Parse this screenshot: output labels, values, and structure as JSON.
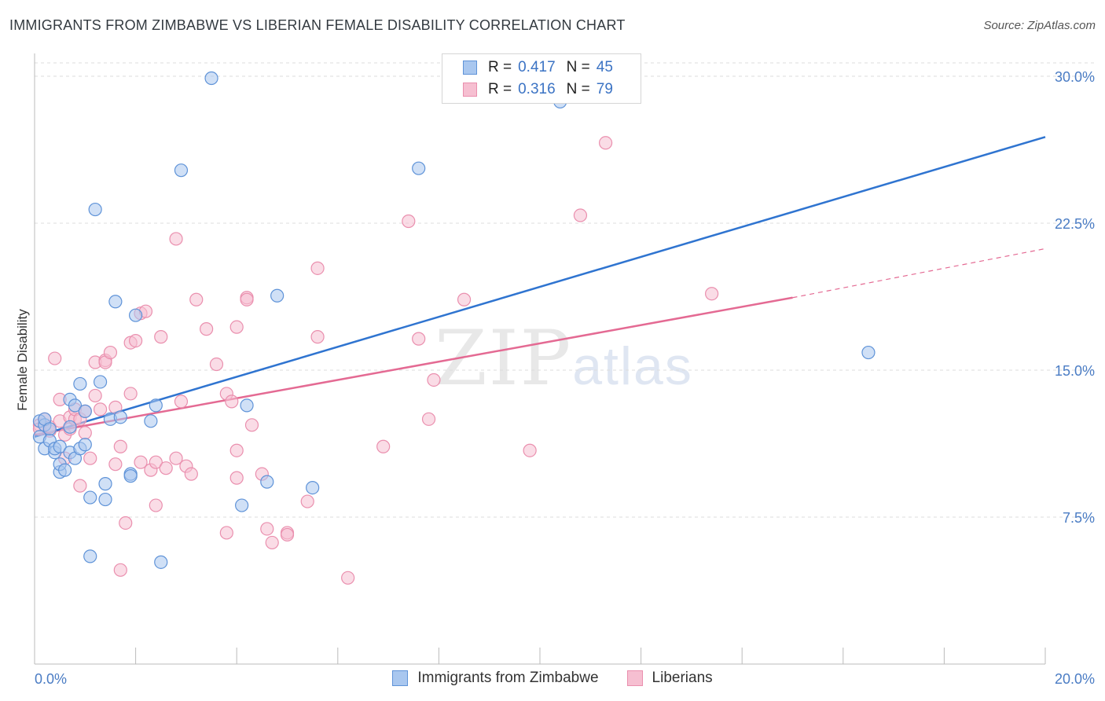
{
  "header": {
    "title": "IMMIGRANTS FROM ZIMBABWE VS LIBERIAN FEMALE DISABILITY CORRELATION CHART",
    "source": "Source: ZipAtlas.com"
  },
  "watermark": {
    "zip": "ZIP",
    "atlas": "atlas"
  },
  "legend_top": [
    {
      "r_label": "R = ",
      "r_value": "0.417",
      "n_label": "N = ",
      "n_value": "45"
    },
    {
      "r_label": "R = ",
      "r_value": "0.316",
      "n_label": "N = ",
      "n_value": "79"
    }
  ],
  "legend_bottom": [
    "Immigrants from Zimbabwe",
    "Liberians"
  ],
  "colors": {
    "blue_fill": "#a9c7ef",
    "blue_stroke": "#5f93d8",
    "blue_line": "#2f74d0",
    "pink_fill": "#f6bfd1",
    "pink_stroke": "#ea8fae",
    "pink_line": "#e46a93",
    "grid": "#dddddd",
    "tick_text": "#4a7cc4"
  },
  "chart_data": {
    "type": "scatter",
    "title": "IMMIGRANTS FROM ZIMBABWE VS LIBERIAN FEMALE DISABILITY CORRELATION CHART",
    "xlabel": "",
    "ylabel": "Female Disability",
    "xlim": [
      0,
      20
    ],
    "ylim": [
      0,
      31
    ],
    "x_tick_labels": [
      "0.0%",
      "20.0%"
    ],
    "y_ticks": [
      7.5,
      15.0,
      22.5,
      30.0
    ],
    "y_tick_labels": [
      "7.5%",
      "15.0%",
      "22.5%",
      "30.0%"
    ],
    "series": [
      {
        "name": "Immigrants from Zimbabwe",
        "R": 0.417,
        "N": 45,
        "trend": {
          "x": [
            0.0,
            20.0
          ],
          "y": [
            11.6,
            26.9
          ]
        },
        "points": [
          [
            0.1,
            12.4
          ],
          [
            0.1,
            11.6
          ],
          [
            0.2,
            12.2
          ],
          [
            0.2,
            11.0
          ],
          [
            0.2,
            12.5
          ],
          [
            0.3,
            12.0
          ],
          [
            0.3,
            11.4
          ],
          [
            0.4,
            10.8
          ],
          [
            0.4,
            11.0
          ],
          [
            0.5,
            9.8
          ],
          [
            0.5,
            10.2
          ],
          [
            0.5,
            11.1
          ],
          [
            0.6,
            9.9
          ],
          [
            0.7,
            10.8
          ],
          [
            0.7,
            12.1
          ],
          [
            0.7,
            13.5
          ],
          [
            0.8,
            13.2
          ],
          [
            0.8,
            10.5
          ],
          [
            0.9,
            14.3
          ],
          [
            0.9,
            11.0
          ],
          [
            1.0,
            11.2
          ],
          [
            1.0,
            12.9
          ],
          [
            1.1,
            8.5
          ],
          [
            1.1,
            5.5
          ],
          [
            1.2,
            23.2
          ],
          [
            1.3,
            14.4
          ],
          [
            1.4,
            9.2
          ],
          [
            1.4,
            8.4
          ],
          [
            1.5,
            12.5
          ],
          [
            1.6,
            18.5
          ],
          [
            1.7,
            12.6
          ],
          [
            1.9,
            9.7
          ],
          [
            1.9,
            9.6
          ],
          [
            2.0,
            17.8
          ],
          [
            2.3,
            12.4
          ],
          [
            2.4,
            13.2
          ],
          [
            2.5,
            5.2
          ],
          [
            2.9,
            25.2
          ],
          [
            3.5,
            29.9
          ],
          [
            4.1,
            8.1
          ],
          [
            4.2,
            13.2
          ],
          [
            4.6,
            9.3
          ],
          [
            4.8,
            18.8
          ],
          [
            5.5,
            9.0
          ],
          [
            7.6,
            25.3
          ],
          [
            10.4,
            28.7
          ],
          [
            16.5,
            15.9
          ]
        ]
      },
      {
        "name": "Liberians",
        "R": 0.316,
        "N": 79,
        "trend": {
          "x": [
            0.0,
            15.0
          ],
          "y": [
            11.7,
            18.7
          ]
        },
        "trend_dashed": {
          "x": [
            15.0,
            20.0
          ],
          "y": [
            18.7,
            21.2
          ]
        },
        "points": [
          [
            0.1,
            12.2
          ],
          [
            0.1,
            12.0
          ],
          [
            0.2,
            12.5
          ],
          [
            0.3,
            11.9
          ],
          [
            0.3,
            12.1
          ],
          [
            0.4,
            15.6
          ],
          [
            0.5,
            12.4
          ],
          [
            0.5,
            13.5
          ],
          [
            0.6,
            10.5
          ],
          [
            0.6,
            11.7
          ],
          [
            0.7,
            12.6
          ],
          [
            0.7,
            12.0
          ],
          [
            0.8,
            12.5
          ],
          [
            0.8,
            13.0
          ],
          [
            0.9,
            12.5
          ],
          [
            0.9,
            9.1
          ],
          [
            1.0,
            12.9
          ],
          [
            1.0,
            11.8
          ],
          [
            1.1,
            10.5
          ],
          [
            1.2,
            15.4
          ],
          [
            1.2,
            13.7
          ],
          [
            1.3,
            13.0
          ],
          [
            1.4,
            15.5
          ],
          [
            1.4,
            15.4
          ],
          [
            1.5,
            15.9
          ],
          [
            1.6,
            10.2
          ],
          [
            1.6,
            13.1
          ],
          [
            1.7,
            11.1
          ],
          [
            1.7,
            4.8
          ],
          [
            1.8,
            7.2
          ],
          [
            1.9,
            13.8
          ],
          [
            1.9,
            16.4
          ],
          [
            2.0,
            16.5
          ],
          [
            2.1,
            10.3
          ],
          [
            2.1,
            17.9
          ],
          [
            2.2,
            18.0
          ],
          [
            2.3,
            9.9
          ],
          [
            2.4,
            10.3
          ],
          [
            2.4,
            8.1
          ],
          [
            2.5,
            16.7
          ],
          [
            2.6,
            10.0
          ],
          [
            2.8,
            10.5
          ],
          [
            2.8,
            21.7
          ],
          [
            2.9,
            13.4
          ],
          [
            3.0,
            10.1
          ],
          [
            3.1,
            9.7
          ],
          [
            3.2,
            18.6
          ],
          [
            3.4,
            17.1
          ],
          [
            3.6,
            15.3
          ],
          [
            3.8,
            13.8
          ],
          [
            3.8,
            6.7
          ],
          [
            3.9,
            13.4
          ],
          [
            4.0,
            10.9
          ],
          [
            4.0,
            17.2
          ],
          [
            4.0,
            9.5
          ],
          [
            4.2,
            18.7
          ],
          [
            4.2,
            18.6
          ],
          [
            4.3,
            12.2
          ],
          [
            4.5,
            9.7
          ],
          [
            4.6,
            6.9
          ],
          [
            4.7,
            6.2
          ],
          [
            5.0,
            6.7
          ],
          [
            5.0,
            6.6
          ],
          [
            5.4,
            8.3
          ],
          [
            5.6,
            20.2
          ],
          [
            5.6,
            16.7
          ],
          [
            6.2,
            4.4
          ],
          [
            6.9,
            11.1
          ],
          [
            7.4,
            22.6
          ],
          [
            7.6,
            16.6
          ],
          [
            7.8,
            12.5
          ],
          [
            7.9,
            14.5
          ],
          [
            8.5,
            18.6
          ],
          [
            9.8,
            10.9
          ],
          [
            10.8,
            22.9
          ],
          [
            11.3,
            26.6
          ],
          [
            13.4,
            18.9
          ]
        ]
      }
    ]
  }
}
